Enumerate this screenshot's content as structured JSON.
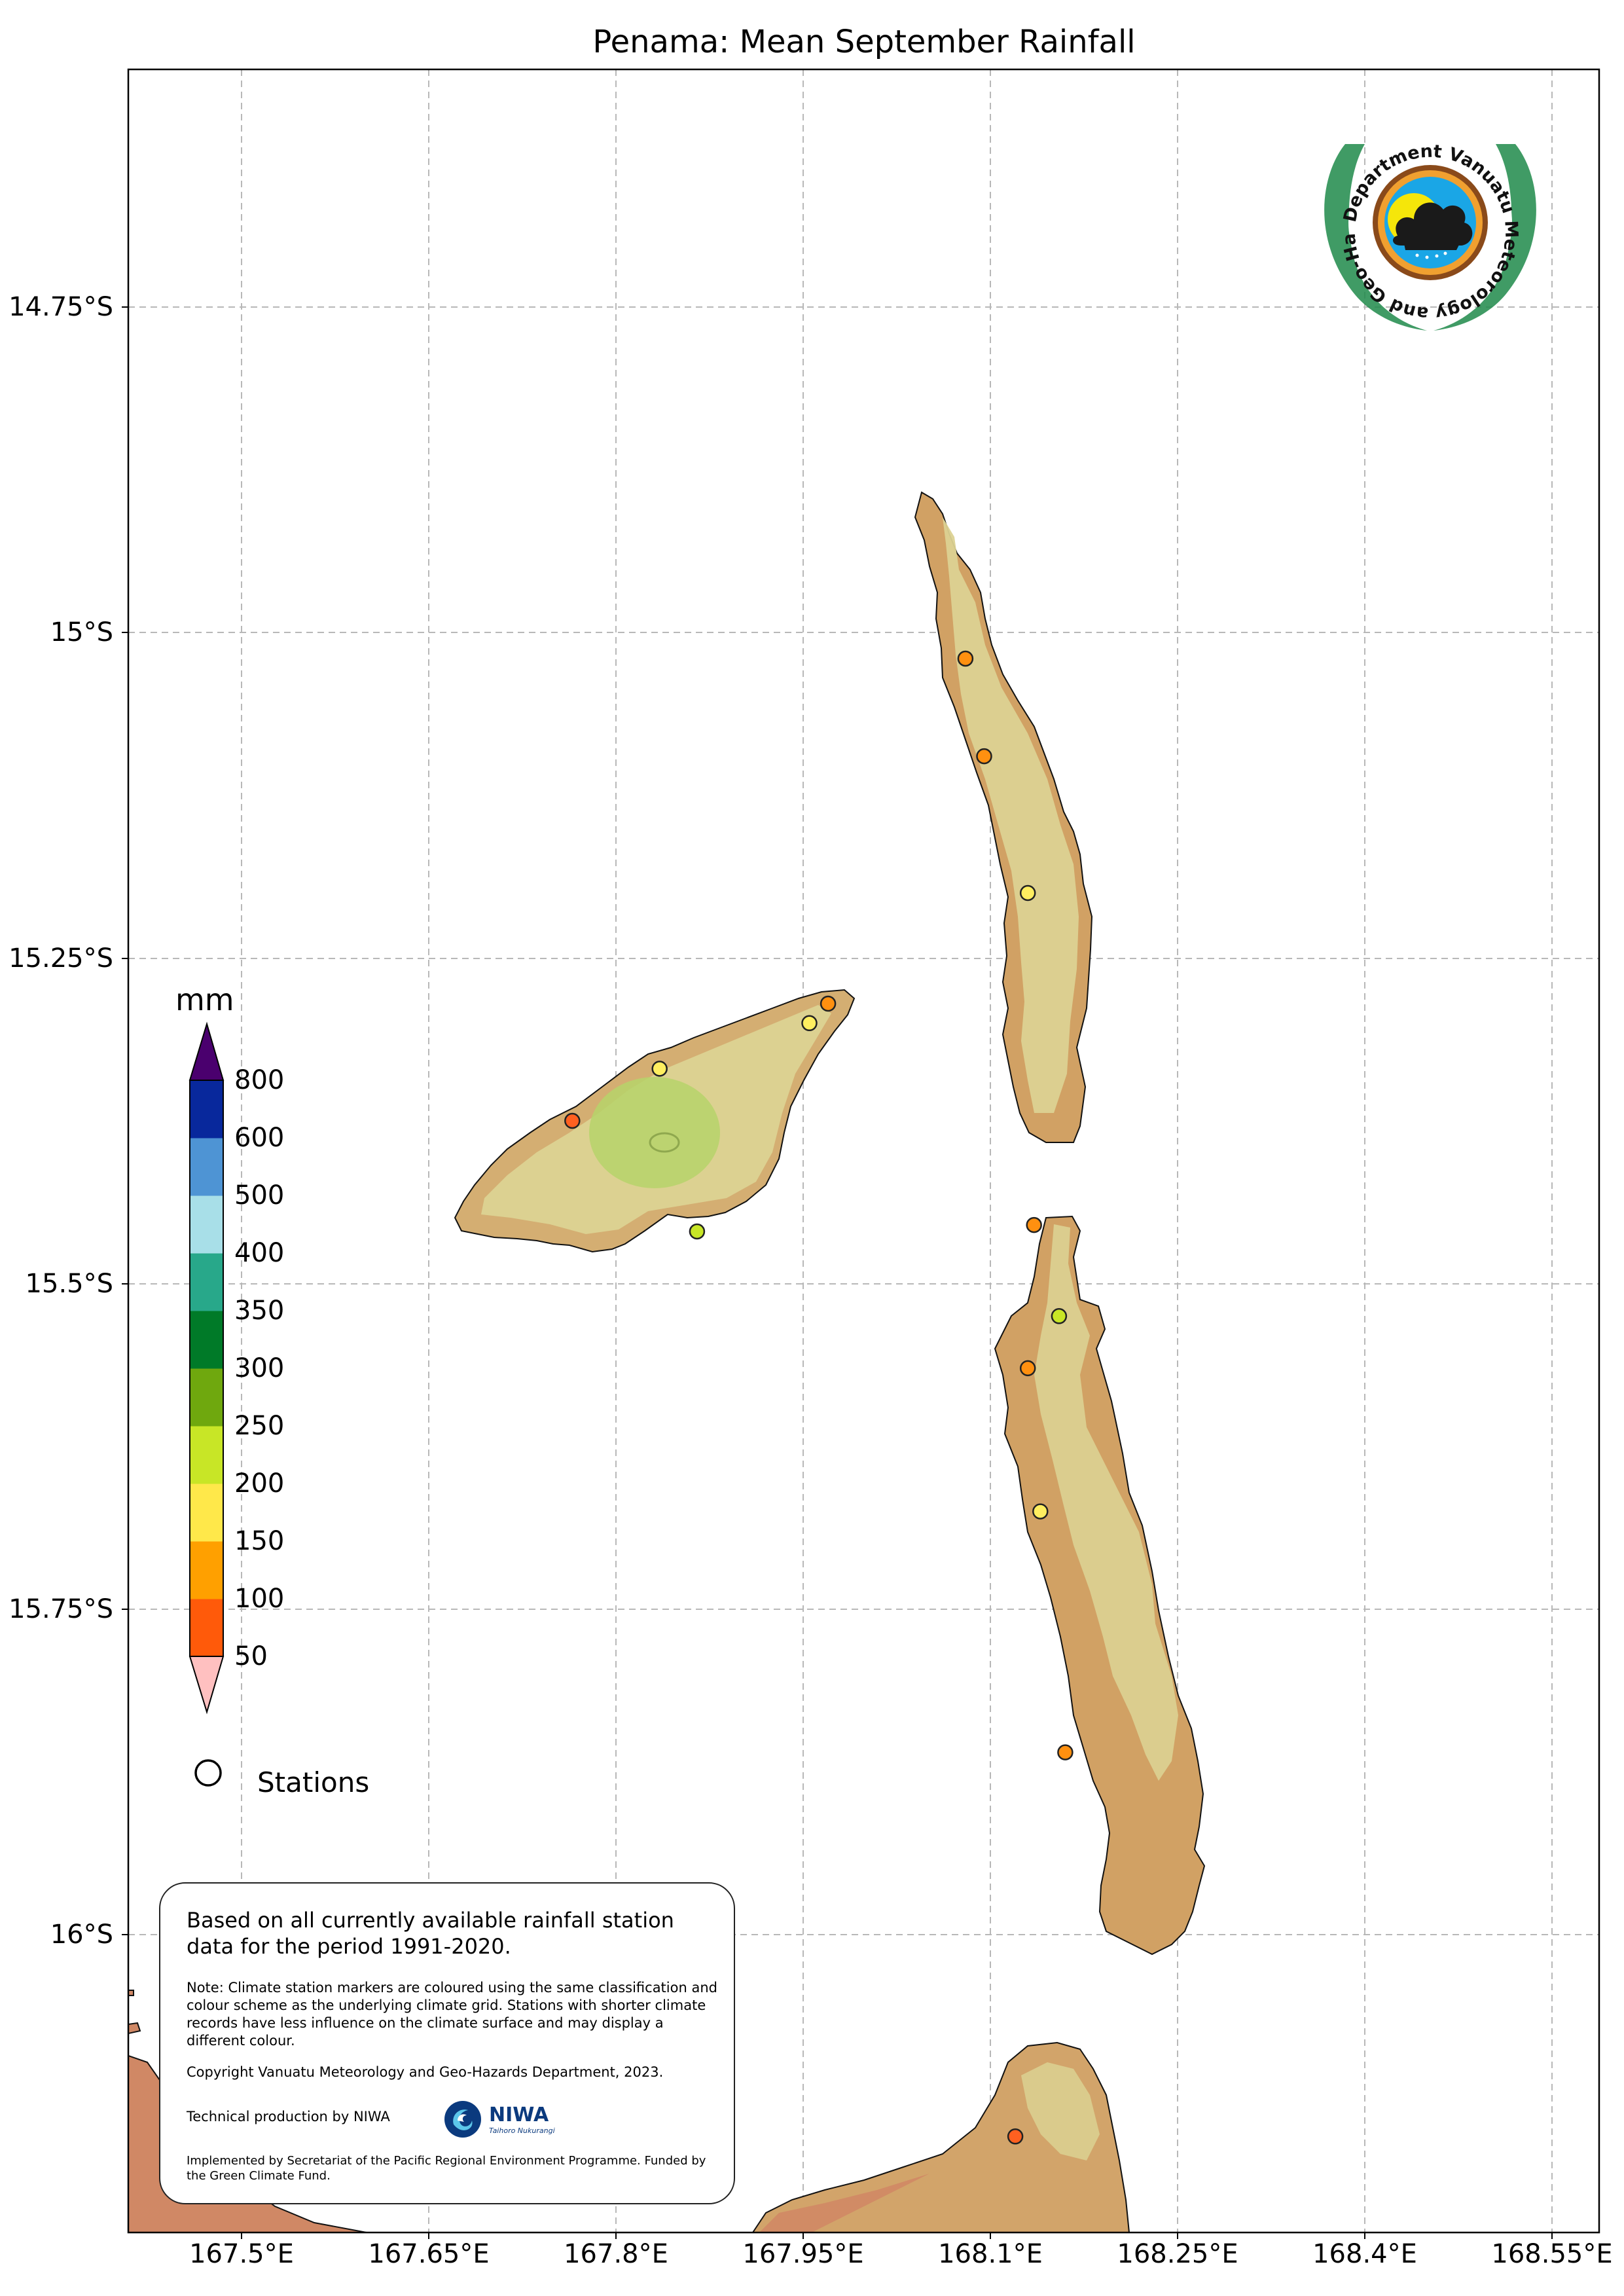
{
  "title": "Penama: Mean September Rainfall",
  "lat_labels": [
    "14.75°S",
    "15°S",
    "15.25°S",
    "15.5°S",
    "15.75°S",
    "16°S"
  ],
  "lon_labels": [
    "167.5°E",
    "167.65°E",
    "167.8°E",
    "167.95°E",
    "168.1°E",
    "168.25°E",
    "168.4°E",
    "168.55°E"
  ],
  "legend": {
    "unit": "mm",
    "levels": [
      "50",
      "100",
      "150",
      "200",
      "250",
      "300",
      "350",
      "400",
      "500",
      "600",
      "800"
    ],
    "colors": [
      "#ff5a0a",
      "#ffa000",
      "#ffe84a",
      "#c8e626",
      "#6fa80e",
      "#007a28",
      "#28a88a",
      "#a8dfe8",
      "#4e94d4",
      "#08289c"
    ],
    "under_color": "#ffc0c0",
    "over_color": "#4a006e",
    "stations_label": "Stations"
  },
  "info": {
    "main": "Based on all currently available rainfall station data for the period 1991-2020.",
    "note": "Note: Climate station markers are coloured using the same classification and colour scheme as the underlying climate grid. Stations with shorter climate records have less influence on the climate surface and may display a different colour.",
    "copyright": "Copyright Vanuatu Meteorology and Geo-Hazards Department, 2023.",
    "technical": "Technical production by NIWA",
    "niwa": "NIWA",
    "niwa_sub": "Taihoro Nukurangi",
    "implemented": "Implemented by Secretariat of the Pacific Regional Environment Programme. Funded by the Green Climate Fund."
  },
  "logo": {
    "text": "Department Vanuatu Meteorology and Geo-Hazards"
  },
  "stations": [
    {
      "lon": 168.08,
      "lat": 15.02,
      "color": "#ff9010"
    },
    {
      "lon": 168.095,
      "lat": 15.095,
      "color": "#ff9010"
    },
    {
      "lon": 168.13,
      "lat": 15.2,
      "color": "#ffee60"
    },
    {
      "lon": 167.97,
      "lat": 15.285,
      "color": "#ff9010"
    },
    {
      "lon": 167.955,
      "lat": 15.3,
      "color": "#ffee60"
    },
    {
      "lon": 167.835,
      "lat": 15.335,
      "color": "#ffee60"
    },
    {
      "lon": 167.765,
      "lat": 15.375,
      "color": "#ff6020"
    },
    {
      "lon": 167.865,
      "lat": 15.46,
      "color": "#c8e626"
    },
    {
      "lon": 168.135,
      "lat": 15.455,
      "color": "#ff9010"
    },
    {
      "lon": 168.155,
      "lat": 15.525,
      "color": "#c8e626"
    },
    {
      "lon": 168.13,
      "lat": 15.565,
      "color": "#ff9010"
    },
    {
      "lon": 168.14,
      "lat": 15.675,
      "color": "#ffee60"
    },
    {
      "lon": 168.16,
      "lat": 15.86,
      "color": "#ff9010"
    },
    {
      "lon": 168.12,
      "lat": 16.155,
      "color": "#ff6020"
    }
  ]
}
